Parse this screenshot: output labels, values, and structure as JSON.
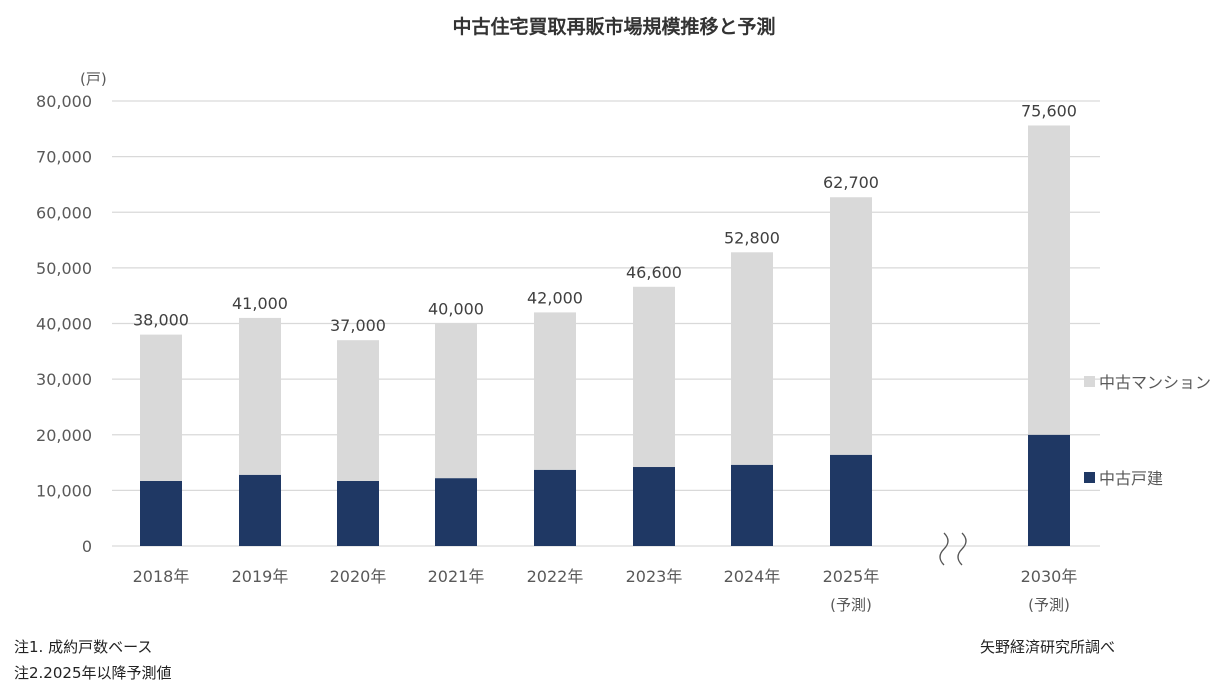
{
  "chart_data": {
    "type": "bar",
    "stacked": true,
    "title": "中古住宅買取再販市場規模推移と予測",
    "ylabel": "(戸)",
    "ylim": [
      0,
      80000
    ],
    "yticks": [
      "0",
      "10,000",
      "20,000",
      "30,000",
      "40,000",
      "50,000",
      "60,000",
      "70,000",
      "80,000"
    ],
    "grid": true,
    "legend_position": "right",
    "axis_break_before_last": true,
    "categories": [
      "2018年",
      "2019年",
      "2020年",
      "2021年",
      "2022年",
      "2023年",
      "2024年",
      "2025年",
      "2030年"
    ],
    "category_sublabels": [
      "",
      "",
      "",
      "",
      "",
      "",
      "",
      "(予測)",
      "(予測)"
    ],
    "totals": [
      38000,
      41000,
      37000,
      40000,
      42000,
      46600,
      52800,
      62700,
      75600
    ],
    "total_labels": [
      "38,000",
      "41,000",
      "37,000",
      "40,000",
      "42,000",
      "46,600",
      "52,800",
      "62,700",
      "75,600"
    ],
    "series": [
      {
        "name": "中古戸建",
        "color": "#1f3864",
        "values": [
          11700,
          12800,
          11700,
          12200,
          13700,
          14200,
          14600,
          16400,
          20000
        ]
      },
      {
        "name": "中古マンション",
        "color": "#d9d9d9",
        "values": [
          26300,
          28200,
          25300,
          27800,
          28300,
          32400,
          38200,
          46300,
          55600
        ]
      }
    ]
  },
  "notes": {
    "note1": "注1. 成約戸数ベース",
    "note2": "注2.2025年以降予測値",
    "source": "矢野経済研究所調べ"
  }
}
